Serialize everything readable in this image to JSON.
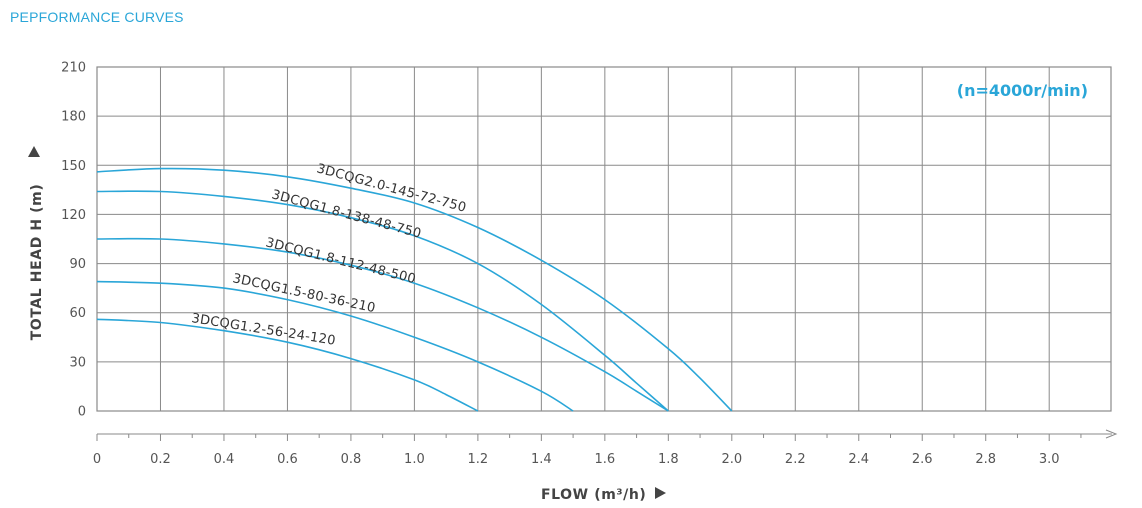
{
  "page": {
    "title": "PEPFORMANCE CURVES"
  },
  "chart_data": {
    "type": "line",
    "xlabel": "FLOW (m³/h)",
    "ylabel": "TOTAL HEAD H (m)",
    "annotation": "(n=4000r/min)",
    "xlim": [
      0,
      3.2
    ],
    "ylim": [
      0,
      210
    ],
    "xticks": [
      0,
      0.2,
      0.4,
      0.6,
      0.8,
      1.0,
      1.2,
      1.4,
      1.6,
      1.8,
      2.0,
      2.2,
      2.4,
      2.6,
      2.8,
      3.0
    ],
    "xtick_labels": [
      "0",
      "0.2",
      "0.4",
      "0.6",
      "0.8",
      "1.0",
      "1.2",
      "1.4",
      "1.6",
      "1.8",
      "2.0",
      "2.2",
      "2.4",
      "2.6",
      "2.8",
      "3.0"
    ],
    "yticks": [
      0,
      30,
      60,
      90,
      120,
      150,
      180,
      210
    ],
    "ytick_labels": [
      "0",
      "30",
      "60",
      "90",
      "120",
      "150",
      "180",
      "210"
    ],
    "grid": true,
    "line_color": "#2aa6d8",
    "series": [
      {
        "name": "3DCQG2.0-145-72-750",
        "x": [
          0,
          0.2,
          0.4,
          0.6,
          0.8,
          1.0,
          1.2,
          1.4,
          1.6,
          1.8,
          1.9,
          2.0
        ],
        "y": [
          146,
          148,
          147,
          143,
          136,
          127,
          112,
          92,
          68,
          38,
          20,
          0
        ]
      },
      {
        "name": "3DCQG1.8-138-48-750",
        "x": [
          0,
          0.2,
          0.4,
          0.6,
          0.8,
          1.0,
          1.2,
          1.4,
          1.6,
          1.7,
          1.8
        ],
        "y": [
          134,
          134,
          131,
          126,
          118,
          107,
          90,
          65,
          34,
          17,
          0
        ]
      },
      {
        "name": "3DCQG1.8-112-48-500",
        "x": [
          0,
          0.2,
          0.4,
          0.6,
          0.8,
          1.0,
          1.2,
          1.4,
          1.6,
          1.7,
          1.8
        ],
        "y": [
          105,
          105,
          102,
          97,
          89,
          78,
          63,
          45,
          24,
          12,
          0
        ]
      },
      {
        "name": "3DCQG1.5-80-36-210",
        "x": [
          0,
          0.2,
          0.4,
          0.6,
          0.8,
          1.0,
          1.2,
          1.4,
          1.5
        ],
        "y": [
          79,
          78,
          75,
          68,
          58,
          45,
          30,
          12,
          0
        ]
      },
      {
        "name": "3DCQG1.2-56-24-120",
        "x": [
          0,
          0.2,
          0.4,
          0.6,
          0.8,
          1.0,
          1.1,
          1.2
        ],
        "y": [
          56,
          54,
          49,
          42,
          32,
          19,
          10,
          0
        ]
      }
    ]
  }
}
